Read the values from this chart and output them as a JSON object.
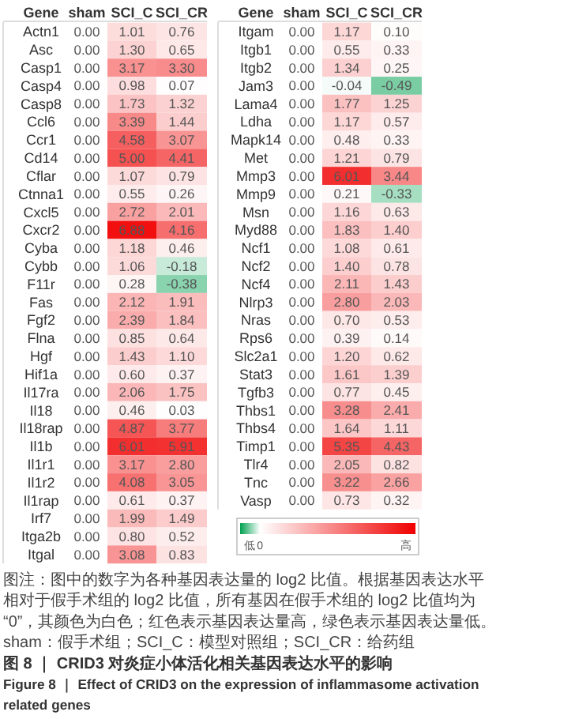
{
  "chart_data": [
    {
      "type": "heatmap",
      "xlabel": "Gene",
      "categories": [
        "sham",
        "SCI_C",
        "SCI_CR"
      ],
      "y_categories": [
        "Actn1",
        "Asc",
        "Casp1",
        "Casp4",
        "Casp8",
        "Ccl6",
        "Ccr1",
        "Cd14",
        "Cflar",
        "Ctnna1",
        "Cxcl5",
        "Cxcr2",
        "Cyba",
        "Cybb",
        "F11r",
        "Fas",
        "Fgf2",
        "Flna",
        "Hgf",
        "Hif1a",
        "Il17ra",
        "Il18",
        "Il18rap",
        "Il1b",
        "Il1r1",
        "Il1r2",
        "Il1rap",
        "Irf7",
        "Itga2b",
        "Itgal"
      ],
      "cells": [
        [
          0,
          1.01,
          0.76
        ],
        [
          0,
          1.3,
          0.65
        ],
        [
          0,
          3.17,
          3.3
        ],
        [
          0,
          0.98,
          0.07
        ],
        [
          0,
          1.73,
          1.32
        ],
        [
          0,
          3.39,
          1.44
        ],
        [
          0,
          4.58,
          3.07
        ],
        [
          0,
          5.0,
          4.41
        ],
        [
          0,
          1.07,
          0.79
        ],
        [
          0,
          0.55,
          0.26
        ],
        [
          0,
          2.72,
          2.01
        ],
        [
          0,
          6.88,
          4.16
        ],
        [
          0,
          1.18,
          0.46
        ],
        [
          0,
          1.06,
          -0.18
        ],
        [
          0,
          0.28,
          -0.38
        ],
        [
          0,
          2.12,
          1.91
        ],
        [
          0,
          2.39,
          1.84
        ],
        [
          0,
          0.85,
          0.64
        ],
        [
          0,
          1.43,
          1.1
        ],
        [
          0,
          0.6,
          0.37
        ],
        [
          0,
          2.06,
          1.75
        ],
        [
          0,
          0.46,
          0.03
        ],
        [
          0,
          4.87,
          3.77
        ],
        [
          0,
          6.01,
          5.91
        ],
        [
          0,
          3.17,
          2.8
        ],
        [
          0,
          4.08,
          3.05
        ],
        [
          0,
          0.61,
          0.37
        ],
        [
          0,
          1.99,
          1.49
        ],
        [
          0,
          0.8,
          0.52
        ],
        [
          0,
          3.08,
          0.83
        ]
      ],
      "cell_labels": [
        [
          "0.00",
          "1.01",
          "0.76"
        ],
        [
          "0.00",
          "1.30",
          "0.65"
        ],
        [
          "0.00",
          "3.17",
          "3.30"
        ],
        [
          "0.00",
          "0.98",
          "0.07"
        ],
        [
          "0.00",
          "1.73",
          "1.32"
        ],
        [
          "0.00",
          "3.39",
          "1.44"
        ],
        [
          "0.00",
          "4.58",
          "3.07"
        ],
        [
          "0.00",
          "5.00",
          "4.41"
        ],
        [
          "0.00",
          "1.07",
          "0.79"
        ],
        [
          "0.00",
          "0.55",
          "0.26"
        ],
        [
          "0.00",
          "2.72",
          "2.01"
        ],
        [
          "0.00",
          "6.88",
          "4.16"
        ],
        [
          "0.00",
          "1.18",
          "0.46"
        ],
        [
          "0.00",
          "1.06",
          "-0.18"
        ],
        [
          "0.00",
          "0.28",
          "-0.38"
        ],
        [
          "0.00",
          "2.12",
          "1.91"
        ],
        [
          "0.00",
          "2.39",
          "1.84"
        ],
        [
          "0.00",
          "0.85",
          "0.64"
        ],
        [
          "0.00",
          "1.43",
          "1.10"
        ],
        [
          "0.00",
          "0.60",
          "0.37"
        ],
        [
          "0.00",
          "2.06",
          "1.75"
        ],
        [
          "0.00",
          "0.46",
          "0.03"
        ],
        [
          "0.00",
          "4.87",
          "3.77"
        ],
        [
          "0.00",
          "6.01",
          "5.91"
        ],
        [
          "0.00",
          "3.17",
          "2.80"
        ],
        [
          "0.00",
          "4.08",
          "3.05"
        ],
        [
          "0.00",
          "0.61",
          "0.37"
        ],
        [
          "0.00",
          "1.99",
          "1.49"
        ],
        [
          "0.00",
          "0.80",
          "0.52"
        ],
        [
          "0.00",
          "3.08",
          "0.83"
        ]
      ]
    },
    {
      "type": "heatmap",
      "xlabel": "Gene",
      "categories": [
        "sham",
        "SCI_C",
        "SCI_CR"
      ],
      "y_categories": [
        "Itgam",
        "Itgb1",
        "Itgb2",
        "Jam3",
        "Lama4",
        "Ldha",
        "Mapk14",
        "Met",
        "Mmp3",
        "Mmp9",
        "Msn",
        "Myd88",
        "Ncf1",
        "Ncf2",
        "Ncf4",
        "Nlrp3",
        "Nras",
        "Rps6",
        "Slc2a1",
        "Stat3",
        "Tgfb3",
        "Thbs1",
        "Thbs4",
        "Timp1",
        "Tlr4",
        "Tnc",
        "Vasp"
      ],
      "cells": [
        [
          0,
          1.17,
          0.1
        ],
        [
          0,
          0.55,
          0.33
        ],
        [
          0,
          1.34,
          0.25
        ],
        [
          0,
          -0.04,
          -0.49
        ],
        [
          0,
          1.77,
          1.25
        ],
        [
          0,
          1.17,
          0.57
        ],
        [
          0,
          0.48,
          0.33
        ],
        [
          0,
          1.21,
          0.79
        ],
        [
          0,
          6.01,
          3.44
        ],
        [
          0,
          0.21,
          -0.33
        ],
        [
          0,
          1.16,
          0.63
        ],
        [
          0,
          1.83,
          1.4
        ],
        [
          0,
          1.08,
          0.61
        ],
        [
          0,
          1.4,
          0.78
        ],
        [
          0,
          2.11,
          1.43
        ],
        [
          0,
          2.8,
          2.03
        ],
        [
          0,
          0.7,
          0.53
        ],
        [
          0,
          0.39,
          0.14
        ],
        [
          0,
          1.2,
          0.62
        ],
        [
          0,
          1.61,
          1.39
        ],
        [
          0,
          0.77,
          0.45
        ],
        [
          0,
          3.28,
          2.41
        ],
        [
          0,
          1.64,
          1.11
        ],
        [
          0,
          5.35,
          4.43
        ],
        [
          0,
          2.05,
          0.82
        ],
        [
          0,
          3.22,
          2.66
        ],
        [
          0,
          0.73,
          0.32
        ]
      ],
      "cell_labels": [
        [
          "0.00",
          "1.17",
          "0.10"
        ],
        [
          "0.00",
          "0.55",
          "0.33"
        ],
        [
          "0.00",
          "1.34",
          "0.25"
        ],
        [
          "0.00",
          "-0.04",
          "-0.49"
        ],
        [
          "0.00",
          "1.77",
          "1.25"
        ],
        [
          "0.00",
          "1.17",
          "0.57"
        ],
        [
          "0.00",
          "0.48",
          "0.33"
        ],
        [
          "0.00",
          "1.21",
          "0.79"
        ],
        [
          "0.00",
          "6.01",
          "3.44"
        ],
        [
          "0.00",
          "0.21",
          "-0.33"
        ],
        [
          "0.00",
          "1.16",
          "0.63"
        ],
        [
          "0.00",
          "1.83",
          "1.40"
        ],
        [
          "0.00",
          "1.08",
          "0.61"
        ],
        [
          "0.00",
          "1.40",
          "0.78"
        ],
        [
          "0.00",
          "2.11",
          "1.43"
        ],
        [
          "0.00",
          "2.80",
          "2.03"
        ],
        [
          "0.00",
          "0.70",
          "0.53"
        ],
        [
          "0.00",
          "0.39",
          "0.14"
        ],
        [
          "0.00",
          "1.20",
          "0.62"
        ],
        [
          "0.00",
          "1.61",
          "1.39"
        ],
        [
          "0.00",
          "0.77",
          "0.45"
        ],
        [
          "0.00",
          "3.28",
          "2.41"
        ],
        [
          "0.00",
          "1.64",
          "1.11"
        ],
        [
          "0.00",
          "5.35",
          "4.43"
        ],
        [
          "0.00",
          "2.05",
          "0.82"
        ],
        [
          "0.00",
          "3.22",
          "2.66"
        ],
        [
          "0.00",
          "0.73",
          "0.32"
        ]
      ],
      "cticks": [
        {
          "value": -0.49,
          "label": "低"
        },
        0,
        {
          "value": 6.88,
          "label": "高"
        }
      ],
      "annotations": [
        "图注：图中的数字为各种基因表达量的 log2 比值。根据基因表达水平",
        "相对于假手术组的 log2 比值，所有基因在假手术组的 log2 比值均为",
        "“0”，其颜色为白色；红色表示基因表达量高，绿色表示基因表达量低。",
        "sham：假手术组；SCI_C：模型对照组；SCI_CR：给药组",
        "图 8 ｜ CRID3 对炎症小体活化相关基因表达水平的影响",
        "Figure 8 ｜ Effect of CRID3 on the expression of inflammasome activation",
        "related genes"
      ]
    }
  ]
}
